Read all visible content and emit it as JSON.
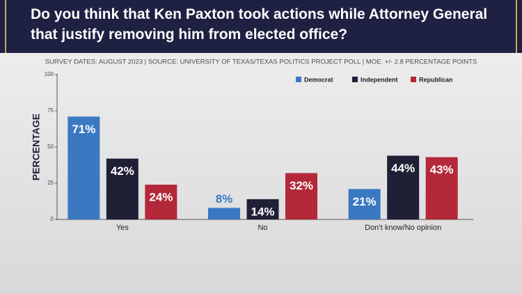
{
  "chart_data": {
    "type": "bar",
    "title": "Do you think that Ken Paxton took actions while Attorney General that justify removing him from elected office?",
    "subtitle": "SURVEY DATES: AUGUST 2023 | SOURCE: UNIVERSITY OF TEXAS/TEXAS POLITICS PROJECT POLL | MOE: +/- 2.8 PERCENTAGE POINTS",
    "y_label": "PERCENTAGE",
    "categories": [
      "Yes",
      "No",
      "Don’t know/No opinion"
    ],
    "series": [
      {
        "name": "Democrat",
        "color": "#3b78c2",
        "values": [
          71,
          8,
          21
        ],
        "value_labels": [
          "71%",
          "8%",
          "21%"
        ]
      },
      {
        "name": "Independent",
        "color": "#1f2036",
        "values": [
          42,
          14,
          44
        ],
        "value_labels": [
          "42%",
          "14%",
          "44%"
        ]
      },
      {
        "name": "Republican",
        "color": "#b3293a",
        "values": [
          24,
          32,
          43
        ],
        "value_labels": [
          "24%",
          "32%",
          "43%"
        ]
      }
    ],
    "ylim": [
      0,
      100
    ],
    "yticks": [
      0,
      25,
      50,
      75,
      100
    ],
    "legend": "top-right"
  }
}
